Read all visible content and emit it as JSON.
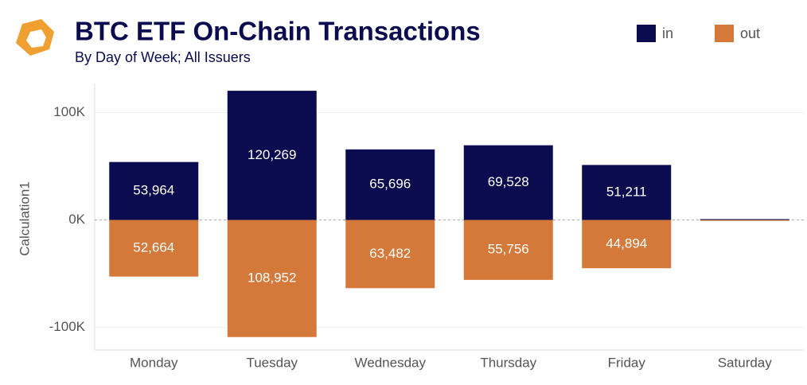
{
  "chart_data": {
    "type": "bar",
    "title": "BTC ETF On-Chain Transactions",
    "subtitle": "By Day of Week; All Issuers",
    "y_label": "Calculation1",
    "categories": [
      "Monday",
      "Tuesday",
      "Wednesday",
      "Thursday",
      "Friday",
      "Saturday"
    ],
    "series": [
      {
        "name": "in",
        "color": "#0b0c4f",
        "values": [
          53964,
          120269,
          65696,
          69528,
          51211,
          800
        ],
        "value_labels": [
          "53,964",
          "120,269",
          "65,696",
          "69,528",
          "51,211",
          null
        ]
      },
      {
        "name": "out",
        "color": "#d4793a",
        "values": [
          -52664,
          -108952,
          -63482,
          -55756,
          -44894,
          -300
        ],
        "value_labels": [
          "52,664",
          "108,952",
          "63,482",
          "55,756",
          "44,894",
          null
        ]
      }
    ],
    "ylim": [
      -121000,
      127000
    ],
    "yticks": [
      {
        "value": -100000,
        "label": "-100K"
      },
      {
        "value": 0,
        "label": "0K"
      },
      {
        "value": 100000,
        "label": "100K"
      }
    ],
    "grid": true
  }
}
